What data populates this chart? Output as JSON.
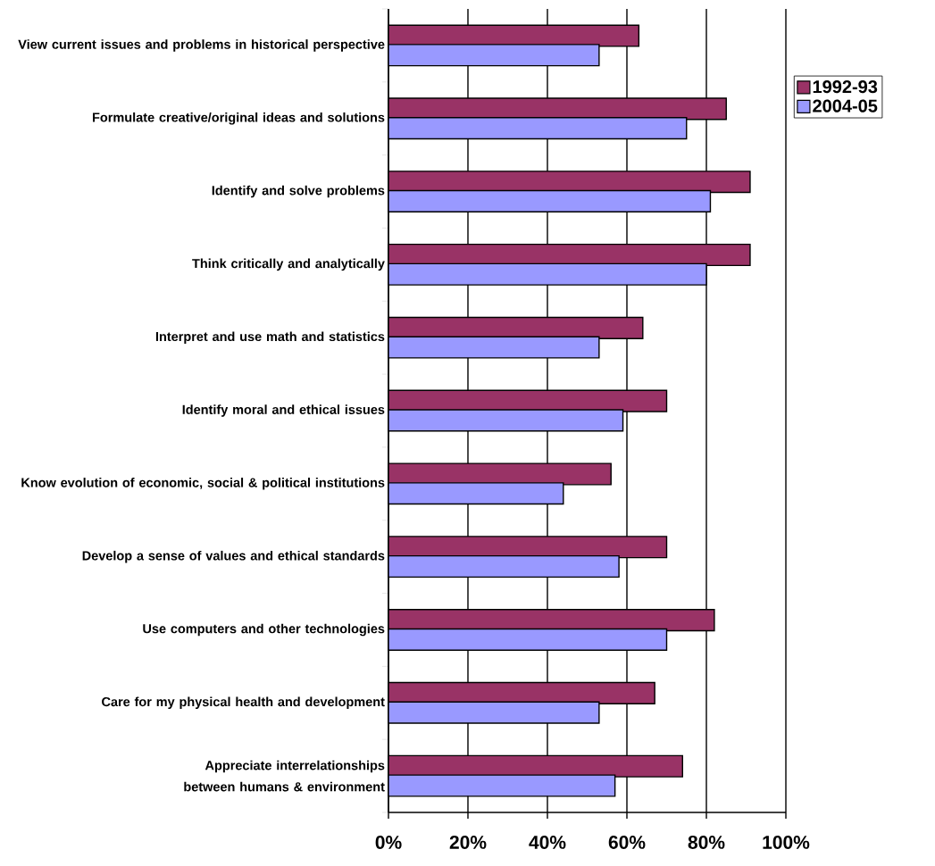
{
  "chart_data": {
    "type": "bar",
    "orientation": "horizontal",
    "categories": [
      "View current issues and problems in historical perspective",
      "Formulate creative/original ideas and solutions",
      "Identify and solve problems",
      "Think critically and analytically",
      "Interpret and use math and statistics",
      "Identify moral and ethical issues",
      "Know evolution of economic, social & political institutions",
      "Develop a sense of values and ethical standards",
      "Use computers and other technologies",
      "Care for my physical health and development",
      "Appreciate interrelationships between humans & environment"
    ],
    "series": [
      {
        "name": "1992-93",
        "color": "#993366",
        "values": [
          63,
          85,
          91,
          91,
          64,
          70,
          56,
          70,
          82,
          67,
          74
        ]
      },
      {
        "name": "2004-05",
        "color": "#9999ff",
        "values": [
          53,
          75,
          81,
          80,
          53,
          59,
          44,
          58,
          70,
          53,
          57
        ]
      }
    ],
    "xlim": [
      0,
      100
    ],
    "xticks": [
      {
        "value": 0,
        "label": "0%"
      },
      {
        "value": 20,
        "label": "20%"
      },
      {
        "value": 40,
        "label": "40%"
      },
      {
        "value": 60,
        "label": "60%"
      },
      {
        "value": 80,
        "label": "80%"
      },
      {
        "value": 100,
        "label": "100%"
      }
    ],
    "grid": "x",
    "legend": "right"
  }
}
